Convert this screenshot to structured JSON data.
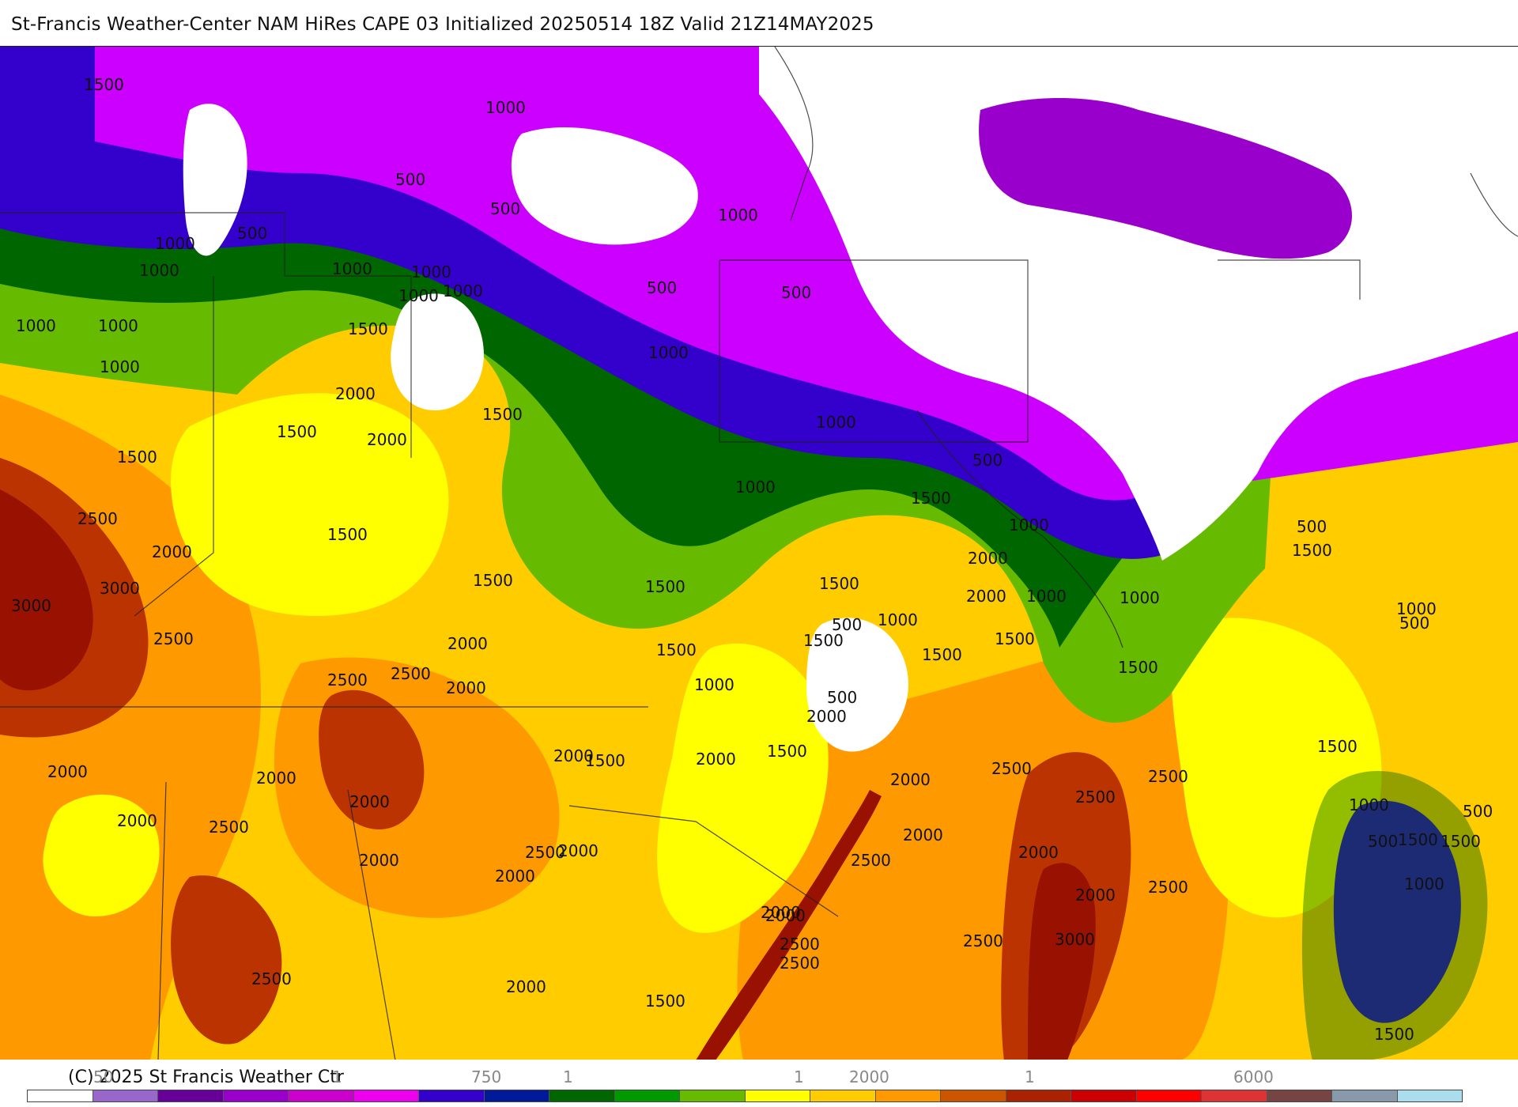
{
  "title": "St-Francis Weather-Center NAM HiRes CAPE  03 Initialized 20250514 18Z Valid 21Z14MAY2025",
  "footer": {
    "copyright": "(C) 2025 St Francis Weather Ctr",
    "tick_labels": [
      "50",
      "1",
      "750",
      "1",
      "1",
      "2000",
      "1",
      "6000"
    ]
  },
  "colorbar": {
    "colors": [
      "#ffffff",
      "#9966cc",
      "#660099",
      "#9900cc",
      "#cc00cc",
      "#ee00ee",
      "#3300cc",
      "#001a99",
      "#006600",
      "#009900",
      "#66bb00",
      "#ffff00",
      "#ffcc00",
      "#ff9900",
      "#cc5500",
      "#aa2200",
      "#cc0000",
      "#ff0000",
      "#dd3333",
      "#774444",
      "#8899aa",
      "#aaddee"
    ]
  },
  "map": {
    "colors": {
      "white": "#ffffff",
      "purple": "#cc00ff",
      "blue": "#3300cc",
      "dark_green": "#006600",
      "green": "#66bb00",
      "yellow": "#ffff00",
      "gold": "#ffcc00",
      "orange": "#ff9900",
      "brown": "#bb3300",
      "dark_red": "#991100"
    },
    "contour_labels": [
      "1500",
      "1000",
      "500",
      "500",
      "500",
      "1000",
      "1000",
      "1000",
      "1000",
      "1000",
      "1000",
      "1000",
      "500",
      "500",
      "1000",
      "1000",
      "1000",
      "1500",
      "2000",
      "1500",
      "2000",
      "1500",
      "1500",
      "2500",
      "2000",
      "3000",
      "3000",
      "2500",
      "1500",
      "1500",
      "2000",
      "1000",
      "1000",
      "1000",
      "1500",
      "500",
      "2000",
      "1000",
      "1500",
      "2000",
      "1000",
      "1500",
      "1500",
      "1500",
      "1500",
      "500",
      "1000",
      "1500",
      "2000",
      "2000",
      "1000",
      "1500",
      "500",
      "2000",
      "1500",
      "2000",
      "2500",
      "2500",
      "2500",
      "2000",
      "2000",
      "2000",
      "2000",
      "2000",
      "2500",
      "2000",
      "2000",
      "2500",
      "2000",
      "2500",
      "2000",
      "2500",
      "2500",
      "2000",
      "2500",
      "3000",
      "2500",
      "1500",
      "2000",
      "2000",
      "1500",
      "500",
      "1500",
      "1000",
      "500",
      "1000",
      "1500",
      "1000",
      "1500",
      "500",
      "500",
      "1000",
      "1500",
      "1500",
      "2500",
      "2500",
      "2000",
      "2000",
      "2500"
    ]
  }
}
